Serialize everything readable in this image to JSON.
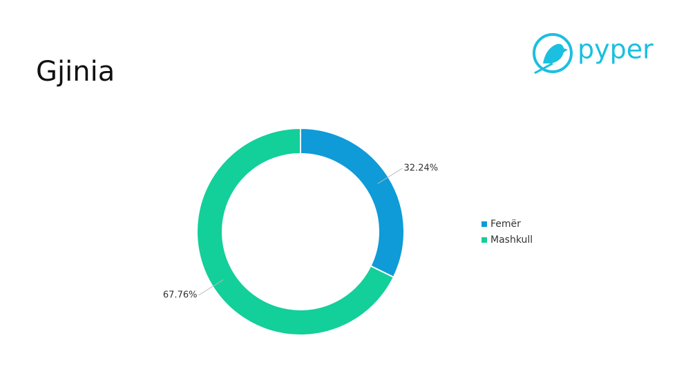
{
  "chart_data": {
    "type": "donut",
    "title": "Gjinia",
    "categories": [
      "Femër",
      "Mashkull"
    ],
    "values": [
      32.24,
      67.76
    ],
    "value_labels": [
      "32.24%",
      "67.76%"
    ],
    "colors": [
      "#0e9bd8",
      "#13cf9a"
    ],
    "legend": "right"
  },
  "logo": {
    "text": "pyper"
  }
}
